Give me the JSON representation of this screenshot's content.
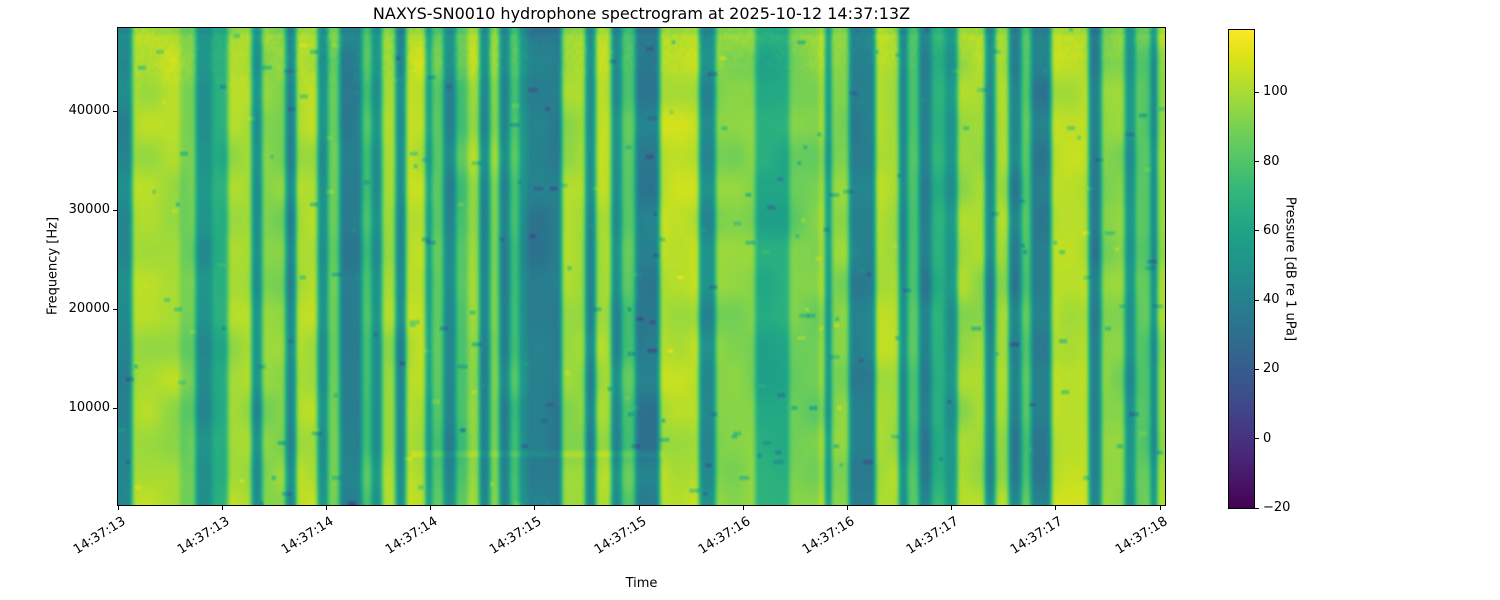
{
  "figure": {
    "background": "#ffffff",
    "text_color": "#000000"
  },
  "title": "NAXYS-SN0010 hydrophone spectrogram at 2025-10-12 14:37:13Z",
  "axes": {
    "xlabel": "Time",
    "ylabel": "Frequency [Hz]",
    "x_tick_labels": [
      "14:37:13",
      "14:37:13",
      "14:37:14",
      "14:37:14",
      "14:37:15",
      "14:37:15",
      "14:37:16",
      "14:37:16",
      "14:37:17",
      "14:37:17",
      "14:37:18"
    ],
    "y_tick_values": [
      10000,
      20000,
      30000,
      40000
    ],
    "y_tick_labels": [
      "10000",
      "20000",
      "30000",
      "40000"
    ]
  },
  "colorbar": {
    "label": "Pressure [dB re 1 uPa]",
    "vmin": -20,
    "vmax": 118,
    "tick_values": [
      100,
      80,
      60,
      40,
      20,
      0,
      -20
    ],
    "tick_labels": [
      "100",
      "80",
      "60",
      "40",
      "20",
      "0",
      "−20"
    ],
    "colormap": "viridis",
    "colormap_stops": [
      [
        0.0,
        "#440154"
      ],
      [
        0.05,
        "#471365"
      ],
      [
        0.1,
        "#482475"
      ],
      [
        0.15,
        "#463480"
      ],
      [
        0.2,
        "#414487"
      ],
      [
        0.25,
        "#3b528b"
      ],
      [
        0.3,
        "#355f8d"
      ],
      [
        0.35,
        "#2f6c8e"
      ],
      [
        0.4,
        "#2a788e"
      ],
      [
        0.45,
        "#25848e"
      ],
      [
        0.5,
        "#21918c"
      ],
      [
        0.55,
        "#1e9c89"
      ],
      [
        0.6,
        "#22a884"
      ],
      [
        0.65,
        "#2fb47c"
      ],
      [
        0.7,
        "#44bf70"
      ],
      [
        0.75,
        "#5ec962"
      ],
      [
        0.8,
        "#7ad151"
      ],
      [
        0.85,
        "#9bd93c"
      ],
      [
        0.9,
        "#bddf26"
      ],
      [
        0.95,
        "#dfe318"
      ],
      [
        1.0,
        "#fde725"
      ]
    ]
  },
  "chart_data": {
    "type": "spectrogram",
    "title": "NAXYS-SN0010 hydrophone spectrogram at 2025-10-12 14:37:13Z",
    "xlabel": "Time",
    "ylabel": "Frequency [Hz]",
    "time_start": "14:37:13",
    "time_end": "14:37:18",
    "x_tick_interval_s": 0.5,
    "y_range_hz": [
      200,
      48400
    ],
    "value_range_db": [
      -20,
      118
    ],
    "colorscale": "viridis",
    "bands_format": "[start_fraction_of_time_axis, end_fraction, broadband_level_db]",
    "time_envelope_bands": [
      [
        0.0,
        0.013,
        50
      ],
      [
        0.013,
        0.059,
        107
      ],
      [
        0.059,
        0.074,
        95
      ],
      [
        0.074,
        0.09,
        55
      ],
      [
        0.09,
        0.105,
        72
      ],
      [
        0.105,
        0.128,
        106
      ],
      [
        0.128,
        0.138,
        54
      ],
      [
        0.138,
        0.16,
        100
      ],
      [
        0.16,
        0.17,
        50
      ],
      [
        0.17,
        0.191,
        108
      ],
      [
        0.191,
        0.2,
        55
      ],
      [
        0.2,
        0.212,
        95
      ],
      [
        0.212,
        0.233,
        46
      ],
      [
        0.233,
        0.243,
        85
      ],
      [
        0.243,
        0.252,
        55
      ],
      [
        0.252,
        0.265,
        105
      ],
      [
        0.265,
        0.274,
        50
      ],
      [
        0.274,
        0.293,
        110
      ],
      [
        0.293,
        0.3,
        60
      ],
      [
        0.3,
        0.312,
        90
      ],
      [
        0.312,
        0.322,
        50
      ],
      [
        0.322,
        0.334,
        86
      ],
      [
        0.334,
        0.346,
        105
      ],
      [
        0.346,
        0.355,
        50
      ],
      [
        0.355,
        0.365,
        100
      ],
      [
        0.365,
        0.374,
        48
      ],
      [
        0.374,
        0.384,
        85
      ],
      [
        0.384,
        0.392,
        55
      ],
      [
        0.392,
        0.424,
        44
      ],
      [
        0.424,
        0.446,
        105
      ],
      [
        0.446,
        0.456,
        50
      ],
      [
        0.456,
        0.472,
        108
      ],
      [
        0.472,
        0.481,
        52
      ],
      [
        0.481,
        0.494,
        88
      ],
      [
        0.494,
        0.518,
        44
      ],
      [
        0.518,
        0.556,
        110
      ],
      [
        0.556,
        0.57,
        52
      ],
      [
        0.57,
        0.608,
        100
      ],
      [
        0.608,
        0.642,
        70
      ],
      [
        0.642,
        0.669,
        95
      ],
      [
        0.669,
        0.675,
        105
      ],
      [
        0.675,
        0.682,
        55
      ],
      [
        0.682,
        0.699,
        100
      ],
      [
        0.699,
        0.723,
        46
      ],
      [
        0.723,
        0.747,
        108
      ],
      [
        0.747,
        0.754,
        52
      ],
      [
        0.754,
        0.766,
        88
      ],
      [
        0.766,
        0.776,
        46
      ],
      [
        0.776,
        0.79,
        75
      ],
      [
        0.79,
        0.802,
        58
      ],
      [
        0.802,
        0.828,
        105
      ],
      [
        0.828,
        0.838,
        50
      ],
      [
        0.838,
        0.852,
        105
      ],
      [
        0.852,
        0.862,
        46
      ],
      [
        0.862,
        0.873,
        88
      ],
      [
        0.873,
        0.892,
        44
      ],
      [
        0.892,
        0.928,
        110
      ],
      [
        0.928,
        0.938,
        45
      ],
      [
        0.938,
        0.962,
        100
      ],
      [
        0.962,
        0.971,
        55
      ],
      [
        0.971,
        0.986,
        90
      ],
      [
        0.986,
        0.993,
        50
      ],
      [
        0.993,
        1.0,
        105
      ]
    ]
  }
}
